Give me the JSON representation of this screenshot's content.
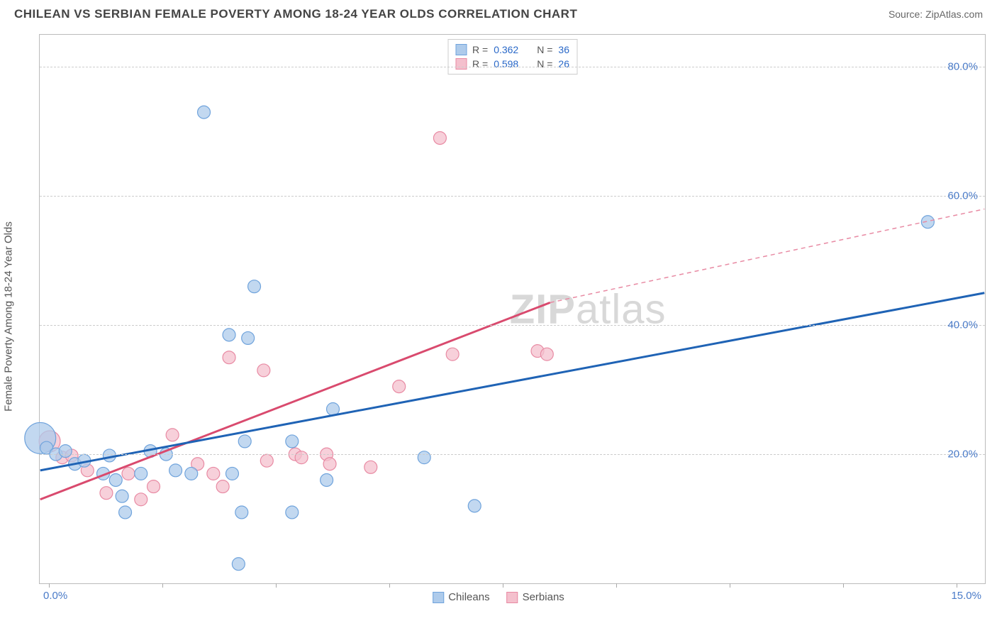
{
  "header": {
    "title": "CHILEAN VS SERBIAN FEMALE POVERTY AMONG 18-24 YEAR OLDS CORRELATION CHART",
    "source_label": "Source: ZipAtlas.com"
  },
  "axes": {
    "y_label": "Female Poverty Among 18-24 Year Olds",
    "x_min": 0.0,
    "x_max": 15.0,
    "y_min": 0.0,
    "y_max": 85.0,
    "x_tick_start_label": "0.0%",
    "x_tick_end_label": "15.0%",
    "y_ticks": [
      {
        "v": 20.0,
        "label": "20.0%"
      },
      {
        "v": 40.0,
        "label": "40.0%"
      },
      {
        "v": 60.0,
        "label": "60.0%"
      },
      {
        "v": 80.0,
        "label": "80.0%"
      }
    ],
    "x_tick_positions_pct": [
      1.0,
      13.0,
      25.0,
      37.0,
      49.0,
      61.0,
      73.0,
      85.0,
      97.0
    ],
    "grid_color": "#cccccc"
  },
  "legend_top": {
    "rows": [
      {
        "swatch_fill": "#aecbeb",
        "swatch_border": "#6fa3dc",
        "r_label": "R =",
        "r_val": "0.362",
        "n_label": "N =",
        "n_val": "36"
      },
      {
        "swatch_fill": "#f4c0cd",
        "swatch_border": "#e88aa3",
        "r_label": "R =",
        "r_val": "0.598",
        "n_label": "N =",
        "n_val": "26"
      }
    ]
  },
  "legend_bottom": {
    "items": [
      {
        "swatch_fill": "#aecbeb",
        "swatch_border": "#6fa3dc",
        "label": "Chileans"
      },
      {
        "swatch_fill": "#f4c0cd",
        "swatch_border": "#e88aa3",
        "label": "Serbians"
      }
    ]
  },
  "watermark": {
    "bold": "ZIP",
    "rest": "atlas"
  },
  "series": {
    "chileans": {
      "color_fill": "#aecbeb",
      "color_stroke": "#6fa3dc",
      "opacity": 0.75,
      "default_r": 9,
      "points": [
        {
          "x": 0.0,
          "y": 22.5,
          "r": 22
        },
        {
          "x": 0.1,
          "y": 21.0
        },
        {
          "x": 0.25,
          "y": 20.0
        },
        {
          "x": 0.4,
          "y": 20.5
        },
        {
          "x": 0.55,
          "y": 18.5
        },
        {
          "x": 0.7,
          "y": 19.0
        },
        {
          "x": 1.0,
          "y": 17.0
        },
        {
          "x": 1.1,
          "y": 19.8
        },
        {
          "x": 1.2,
          "y": 16.0
        },
        {
          "x": 1.3,
          "y": 13.5
        },
        {
          "x": 1.35,
          "y": 11.0
        },
        {
          "x": 1.6,
          "y": 17.0
        },
        {
          "x": 1.75,
          "y": 20.5
        },
        {
          "x": 2.0,
          "y": 20.0
        },
        {
          "x": 2.15,
          "y": 17.5
        },
        {
          "x": 2.4,
          "y": 17.0
        },
        {
          "x": 2.6,
          "y": 73.0
        },
        {
          "x": 3.0,
          "y": 38.5
        },
        {
          "x": 3.05,
          "y": 17.0
        },
        {
          "x": 3.2,
          "y": 11.0
        },
        {
          "x": 3.15,
          "y": 3.0
        },
        {
          "x": 3.25,
          "y": 22.0
        },
        {
          "x": 3.3,
          "y": 38.0
        },
        {
          "x": 3.4,
          "y": 46.0
        },
        {
          "x": 4.0,
          "y": 11.0
        },
        {
          "x": 4.0,
          "y": 22.0
        },
        {
          "x": 4.55,
          "y": 16.0
        },
        {
          "x": 4.65,
          "y": 27.0
        },
        {
          "x": 6.1,
          "y": 19.5
        },
        {
          "x": 6.9,
          "y": 12.0
        },
        {
          "x": 14.1,
          "y": 56.0
        }
      ],
      "trend": {
        "x1": 0.0,
        "y1": 17.5,
        "x2": 15.0,
        "y2": 45.0,
        "color": "#1f63b5",
        "width": 3
      }
    },
    "serbians": {
      "color_fill": "#f4c0cd",
      "color_stroke": "#e88aa3",
      "opacity": 0.75,
      "default_r": 9,
      "points": [
        {
          "x": 0.15,
          "y": 22.0,
          "r": 15
        },
        {
          "x": 0.35,
          "y": 19.5
        },
        {
          "x": 0.5,
          "y": 19.8
        },
        {
          "x": 0.75,
          "y": 17.5
        },
        {
          "x": 1.05,
          "y": 14.0
        },
        {
          "x": 1.4,
          "y": 17.0
        },
        {
          "x": 1.6,
          "y": 13.0
        },
        {
          "x": 1.8,
          "y": 15.0
        },
        {
          "x": 2.1,
          "y": 23.0
        },
        {
          "x": 2.5,
          "y": 18.5
        },
        {
          "x": 2.75,
          "y": 17.0
        },
        {
          "x": 2.9,
          "y": 15.0
        },
        {
          "x": 3.0,
          "y": 35.0
        },
        {
          "x": 3.55,
          "y": 33.0
        },
        {
          "x": 3.6,
          "y": 19.0
        },
        {
          "x": 4.05,
          "y": 20.0
        },
        {
          "x": 4.15,
          "y": 19.5
        },
        {
          "x": 4.55,
          "y": 20.0
        },
        {
          "x": 4.6,
          "y": 18.5
        },
        {
          "x": 5.25,
          "y": 18.0
        },
        {
          "x": 5.7,
          "y": 30.5
        },
        {
          "x": 6.35,
          "y": 69.0
        },
        {
          "x": 6.55,
          "y": 35.5
        },
        {
          "x": 7.9,
          "y": 36.0
        },
        {
          "x": 8.05,
          "y": 35.5
        }
      ],
      "trend_solid": {
        "x1": 0.0,
        "y1": 13.0,
        "x2": 8.1,
        "y2": 43.5,
        "color": "#d94a6e",
        "width": 3
      },
      "trend_dashed": {
        "x1": 8.1,
        "y1": 43.5,
        "x2": 15.0,
        "y2": 58.0,
        "color": "#e88aa3",
        "width": 1.5
      }
    }
  },
  "colors": {
    "background": "#ffffff",
    "border": "#bbbbbb",
    "axis_label_text": "#555555",
    "tick_label": "#4a7bc8"
  }
}
